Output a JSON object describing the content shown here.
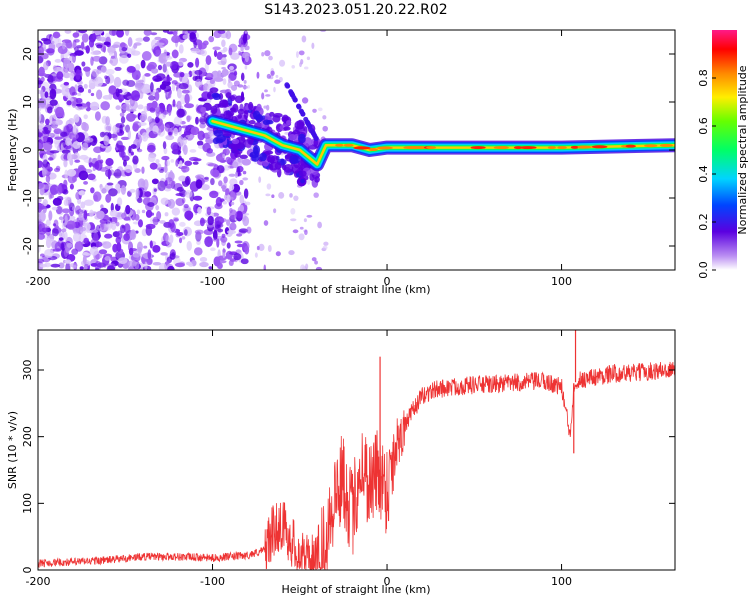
{
  "title": "S143.2023.051.20.22.R02",
  "chart_data": [
    {
      "type": "heatmap",
      "name": "spectrogram",
      "xlabel": "Height of straight line (km)",
      "ylabel": "Frequency (Hz)",
      "xlim": [
        -200,
        165
      ],
      "ylim": [
        -25,
        25
      ],
      "xticks": [
        -200,
        -100,
        0,
        100
      ],
      "yticks": [
        -20,
        -10,
        0,
        10,
        20
      ],
      "colorbar": {
        "label": "Normalized spectral amplitude",
        "range": [
          0,
          1
        ],
        "ticks": [
          0.0,
          0.2,
          0.4,
          0.6,
          0.8
        ],
        "tick_labels": [
          "0.0",
          "0.2",
          "0.4",
          "0.6",
          "0.8"
        ]
      },
      "ridge": {
        "x": [
          -100,
          -90,
          -80,
          -70,
          -60,
          -50,
          -40,
          -35,
          -30,
          -20,
          -10,
          0,
          20,
          50,
          100,
          165
        ],
        "y": [
          6,
          5,
          4,
          3,
          1,
          0,
          -3,
          1,
          1,
          1,
          0,
          0.5,
          0.5,
          0.5,
          0.5,
          1
        ]
      }
    },
    {
      "type": "line",
      "name": "snr",
      "xlabel": "Height of straight line (km)",
      "ylabel": "SNR (10 * v/v)",
      "xlim": [
        -200,
        165
      ],
      "ylim": [
        0,
        360
      ],
      "xticks": [
        -200,
        -100,
        0,
        100
      ],
      "yticks": [
        0,
        100,
        200,
        300
      ],
      "color": "#ee3333",
      "series": [
        {
          "name": "SNR",
          "x": [
            -200,
            -180,
            -160,
            -140,
            -120,
            -100,
            -90,
            -80,
            -70,
            -65,
            -60,
            -55,
            -50,
            -45,
            -40,
            -35,
            -30,
            -25,
            -20,
            -15,
            -10,
            -5,
            0,
            5,
            10,
            15,
            20,
            25,
            30,
            40,
            50,
            60,
            70,
            80,
            90,
            100,
            105,
            107,
            110,
            120,
            130,
            140,
            150,
            160,
            165
          ],
          "y": [
            10,
            12,
            15,
            20,
            20,
            18,
            20,
            22,
            30,
            60,
            70,
            45,
            20,
            12,
            15,
            60,
            110,
            140,
            80,
            160,
            130,
            150,
            120,
            190,
            215,
            240,
            260,
            268,
            272,
            275,
            278,
            278,
            280,
            282,
            283,
            275,
            200,
            280,
            285,
            290,
            295,
            295,
            298,
            300,
            300
          ]
        }
      ],
      "annotations": [
        {
          "x": -4,
          "y": 320,
          "note": "spike"
        },
        {
          "x": 108,
          "y": 360,
          "note": "spike"
        },
        {
          "x": 107,
          "y": 175,
          "note": "dip"
        }
      ]
    }
  ]
}
